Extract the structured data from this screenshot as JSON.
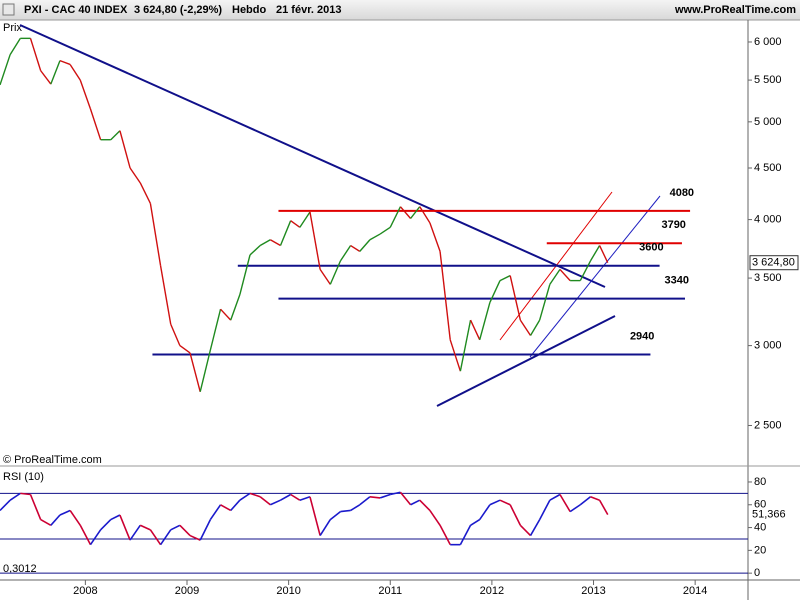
{
  "chart_data": [
    {
      "type": "line",
      "title": "PXI - CAC 40 INDEX",
      "subtitle": "3 624,80 (-2,29%)",
      "period": "Hebdo",
      "date": "21 févr. 2013",
      "source": "www.ProRealTime.com",
      "watermark": "© ProRealTime.com",
      "ylabel": "Prix",
      "last_label": "3 624,80",
      "log": true,
      "up_color": "#1f8a1f",
      "down_color": "#d01010",
      "xlim": [
        2007.16,
        2014.52
      ],
      "xticks": [
        2008,
        2009,
        2010,
        2011,
        2012,
        2013,
        2014
      ],
      "ylim": [
        2300,
        6280
      ],
      "yticks": [
        {
          "value": 2500,
          "label": "2 500"
        },
        {
          "value": 3000,
          "label": "3 000"
        },
        {
          "value": 3500,
          "label": "3 500"
        },
        {
          "value": 4000,
          "label": "4 000"
        },
        {
          "value": 4500,
          "label": "4 500"
        },
        {
          "value": 5000,
          "label": "5 000"
        },
        {
          "value": 5500,
          "label": "5 500"
        },
        {
          "value": 6000,
          "label": "6 000"
        }
      ],
      "x": [
        2007.16,
        2007.26,
        2007.36,
        2007.46,
        2007.56,
        2007.66,
        2007.75,
        2007.85,
        2007.95,
        2008.05,
        2008.15,
        2008.25,
        2008.34,
        2008.44,
        2008.54,
        2008.64,
        2008.74,
        2008.84,
        2008.93,
        2009.03,
        2009.13,
        2009.23,
        2009.33,
        2009.43,
        2009.52,
        2009.62,
        2009.72,
        2009.82,
        2009.92,
        2010.02,
        2010.11,
        2010.21,
        2010.31,
        2010.41,
        2010.51,
        2010.61,
        2010.7,
        2010.8,
        2010.9,
        2011.0,
        2011.1,
        2011.2,
        2011.29,
        2011.39,
        2011.49,
        2011.59,
        2011.69,
        2011.79,
        2011.88,
        2011.98,
        2012.08,
        2012.18,
        2012.28,
        2012.38,
        2012.47,
        2012.57,
        2012.67,
        2012.77,
        2012.87,
        2012.97,
        2013.06,
        2013.14
      ],
      "values": [
        5440,
        5830,
        6050,
        6050,
        5620,
        5450,
        5750,
        5700,
        5500,
        5150,
        4800,
        4800,
        4900,
        4500,
        4350,
        4150,
        3600,
        3150,
        3000,
        2950,
        2700,
        2970,
        3260,
        3180,
        3370,
        3690,
        3770,
        3820,
        3770,
        3990,
        3930,
        4070,
        3570,
        3450,
        3640,
        3770,
        3720,
        3820,
        3870,
        3930,
        4120,
        4010,
        4120,
        3970,
        3720,
        3040,
        2830,
        3180,
        3040,
        3310,
        3480,
        3520,
        3180,
        3070,
        3180,
        3450,
        3570,
        3480,
        3480,
        3640,
        3770,
        3625
      ],
      "levels": [
        {
          "value": 4080,
          "color": "#e00000",
          "from": 2009.9,
          "to": 2013.95
        },
        {
          "value": 3790,
          "color": "#e00000",
          "from": 2012.54,
          "to": 2013.87
        },
        {
          "value": 3600,
          "color": "#10108a",
          "from": 2009.5,
          "to": 2013.65
        },
        {
          "value": 3340,
          "color": "#10108a",
          "from": 2009.9,
          "to": 2013.9
        },
        {
          "value": 2940,
          "color": "#10108a",
          "from": 2008.66,
          "to": 2013.56
        }
      ]
    },
    {
      "type": "line",
      "title": "RSI (10)",
      "last_label": "51,366",
      "corner_note": "0,3012",
      "up_color": "#1a1acc",
      "down_color": "#cc0033",
      "level_color": "#10108a",
      "xlim": [
        2007.16,
        2014.52
      ],
      "ylim": [
        -6,
        90.5
      ],
      "yticks": [
        0,
        20,
        40,
        60,
        80
      ],
      "levels": [
        0,
        30,
        70
      ],
      "x": [
        2007.16,
        2007.26,
        2007.36,
        2007.46,
        2007.56,
        2007.66,
        2007.75,
        2007.85,
        2007.95,
        2008.05,
        2008.15,
        2008.25,
        2008.34,
        2008.44,
        2008.54,
        2008.64,
        2008.74,
        2008.84,
        2008.93,
        2009.03,
        2009.13,
        2009.23,
        2009.33,
        2009.43,
        2009.52,
        2009.62,
        2009.72,
        2009.82,
        2009.92,
        2010.02,
        2010.11,
        2010.21,
        2010.31,
        2010.41,
        2010.51,
        2010.61,
        2010.7,
        2010.8,
        2010.9,
        2011.0,
        2011.1,
        2011.2,
        2011.29,
        2011.39,
        2011.49,
        2011.59,
        2011.69,
        2011.79,
        2011.88,
        2011.98,
        2012.08,
        2012.18,
        2012.28,
        2012.38,
        2012.47,
        2012.57,
        2012.67,
        2012.77,
        2012.87,
        2012.97,
        2013.06,
        2013.14
      ],
      "values": [
        55,
        64,
        70,
        69,
        47,
        42,
        51,
        55,
        42,
        25,
        38,
        47,
        51,
        29,
        42,
        38,
        25,
        38,
        42,
        33,
        29,
        47,
        60,
        55,
        64,
        70,
        67,
        60,
        64,
        69,
        64,
        67,
        33,
        47,
        54,
        55,
        60,
        67,
        66,
        69,
        71,
        60,
        64,
        55,
        42,
        25,
        25,
        42,
        47,
        60,
        64,
        60,
        42,
        33,
        47,
        64,
        69,
        54,
        60,
        67,
        64,
        51.366
      ]
    }
  ]
}
